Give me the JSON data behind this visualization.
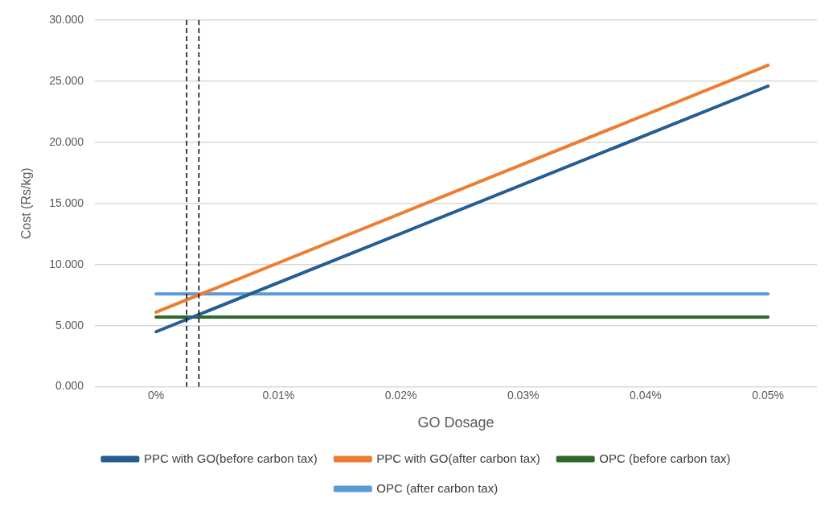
{
  "chart_data": {
    "type": "line",
    "xlabel": "GO Dosage",
    "ylabel": "Cost (Rs/kg)",
    "x": [
      0,
      0.05
    ],
    "series": [
      {
        "name": "PPC with GO(before carbon tax)",
        "color": "#255e91",
        "values": [
          4.5,
          24.6
        ]
      },
      {
        "name": "PPC with GO(after carbon tax)",
        "color": "#ed7d31",
        "values": [
          6.1,
          26.3
        ]
      },
      {
        "name": "OPC (before carbon tax)",
        "color": "#2e6b2a",
        "values": [
          5.7,
          5.7
        ]
      },
      {
        "name": "OPC (after carbon tax)",
        "color": "#5b9bd5",
        "values": [
          7.6,
          7.6
        ]
      }
    ],
    "xlim": [
      -0.005,
      0.054
    ],
    "xticks": [
      {
        "value": 0,
        "label": "0%"
      },
      {
        "value": 0.01,
        "label": "0.01%"
      },
      {
        "value": 0.02,
        "label": "0.02%"
      },
      {
        "value": 0.03,
        "label": "0.03%"
      },
      {
        "value": 0.04,
        "label": "0.04%"
      },
      {
        "value": 0.05,
        "label": "0.05%"
      }
    ],
    "ylim": [
      0,
      30
    ],
    "yticks": [
      {
        "value": 0,
        "label": "0.000"
      },
      {
        "value": 5,
        "label": "5.000"
      },
      {
        "value": 10,
        "label": "10.000"
      },
      {
        "value": 15,
        "label": "15.000"
      },
      {
        "value": 20,
        "label": "20.000"
      },
      {
        "value": 25,
        "label": "25.000"
      },
      {
        "value": 30,
        "label": "30.000"
      }
    ],
    "ref_lines": [
      {
        "axis": "x",
        "value": 0.0025,
        "color": "#000000",
        "line_style": "dashed"
      },
      {
        "axis": "x",
        "value": 0.0035,
        "color": "#000000",
        "line_style": "dashed"
      }
    ],
    "grid": "y",
    "legend": "bottom",
    "marker": "none",
    "line_style": "solid"
  }
}
